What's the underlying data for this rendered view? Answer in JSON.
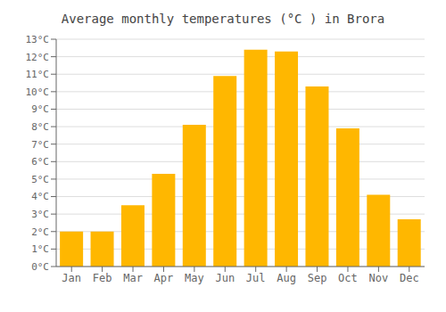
{
  "chart_data": {
    "type": "bar",
    "title": "Average monthly temperatures (°C ) in Brora",
    "categories": [
      "Jan",
      "Feb",
      "Mar",
      "Apr",
      "May",
      "Jun",
      "Jul",
      "Aug",
      "Sep",
      "Oct",
      "Nov",
      "Dec"
    ],
    "values": [
      2.0,
      2.0,
      3.5,
      5.3,
      8.1,
      10.9,
      12.4,
      12.3,
      10.3,
      7.9,
      4.1,
      2.7
    ],
    "color": "#FFB700",
    "ylim": [
      0,
      13
    ],
    "yticks": [
      {
        "value": 0,
        "label": "0°C"
      },
      {
        "value": 1,
        "label": "1°C"
      },
      {
        "value": 2,
        "label": "2°C"
      },
      {
        "value": 3,
        "label": "3°C"
      },
      {
        "value": 4,
        "label": "4°C"
      },
      {
        "value": 5,
        "label": "5°C"
      },
      {
        "value": 6,
        "label": "6°C"
      },
      {
        "value": 7,
        "label": "7°C"
      },
      {
        "value": 8,
        "label": "8°C"
      },
      {
        "value": 9,
        "label": "9°C"
      },
      {
        "value": 10,
        "label": "10°C"
      },
      {
        "value": 11,
        "label": "11°C"
      },
      {
        "value": 12,
        "label": "12°C"
      },
      {
        "value": 13,
        "label": "13°C"
      }
    ],
    "grid": true
  }
}
